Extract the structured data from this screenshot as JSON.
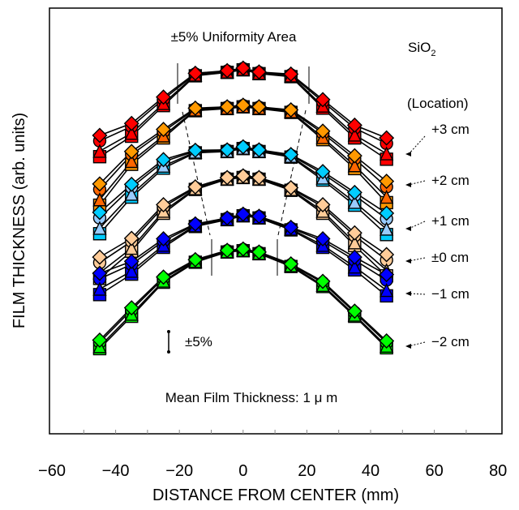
{
  "chart_data": {
    "type": "line",
    "title": "",
    "xlabel": "DISTANCE FROM CENTER (mm)",
    "ylabel": "FILM THICKNESS (arb. units)",
    "xlim": [
      -60,
      80
    ],
    "ylim": [
      0,
      100
    ],
    "x_ticks": [
      "−60",
      "−40",
      "−20",
      "0",
      "20",
      "40",
      "60",
      "80"
    ],
    "x_tick_values": [
      -60,
      -40,
      -20,
      0,
      20,
      40,
      60,
      80
    ],
    "x_minor_step": 10,
    "y_ticks": [],
    "grid": false,
    "x": [
      -45,
      -35,
      -25,
      -15,
      -5,
      0,
      5,
      15,
      25,
      35,
      45
    ],
    "annotations": {
      "uniformity_area": "±5% Uniformity Area",
      "material": "SiO",
      "material_subscript": "2",
      "legend_title": "(Location)",
      "error_bar_label": "±5%",
      "mean_thickness": "Mean Film Thickness: 1 μ m"
    },
    "locations": [
      {
        "label": "+3 cm",
        "color": "#ff0000",
        "alt_color": "#ff0000",
        "diamond": [
          70.1,
          72.9,
          79.1,
          84.7,
          85.3,
          85.9,
          85.0,
          84.5,
          78.5,
          72.5,
          69.5
        ],
        "circle": [
          68.8,
          72.2,
          78.6,
          84.5,
          85.2,
          85.8,
          84.9,
          84.3,
          78.0,
          71.8,
          68.2
        ],
        "triangle": [
          66.4,
          70.6,
          77.6,
          84.3,
          85.0,
          85.6,
          84.7,
          84.1,
          77.0,
          70.2,
          65.8
        ],
        "square": [
          65.1,
          69.9,
          77.1,
          84.1,
          84.9,
          85.5,
          84.6,
          83.9,
          76.5,
          69.5,
          64.5
        ]
      },
      {
        "label": "+2 cm",
        "color": "#ff9900",
        "alt_color": "#ff6600",
        "diamond": [
          58.7,
          66.3,
          71.5,
          76.5,
          76.8,
          77.2,
          76.8,
          76.1,
          71.1,
          65.3,
          59.3
        ],
        "circle": [
          57.4,
          65.6,
          71.0,
          76.3,
          76.7,
          77.1,
          76.7,
          75.9,
          70.6,
          64.6,
          58.0
        ],
        "triangle": [
          55.0,
          64.0,
          70.0,
          76.1,
          76.5,
          76.9,
          76.5,
          75.7,
          69.6,
          63.0,
          55.6
        ],
        "square": [
          53.7,
          63.3,
          69.5,
          75.9,
          76.4,
          76.8,
          76.4,
          75.5,
          69.1,
          62.3,
          54.3
        ]
      },
      {
        "label": "+1 cm",
        "color": "#00ccff",
        "alt_color": "#99ccff",
        "diamond": [
          52.0,
          58.6,
          64.4,
          66.6,
          66.7,
          67.4,
          66.7,
          65.6,
          61.6,
          56.7,
          51.8
        ],
        "circle": [
          50.7,
          57.9,
          63.9,
          66.4,
          66.6,
          67.3,
          66.6,
          65.4,
          61.1,
          56.0,
          50.5
        ],
        "triangle": [
          48.3,
          56.3,
          62.9,
          66.2,
          66.4,
          67.1,
          66.4,
          65.2,
          60.1,
          54.4,
          48.1
        ],
        "square": [
          47.0,
          55.6,
          62.4,
          66.0,
          66.3,
          67.0,
          66.3,
          65.0,
          59.6,
          53.7,
          46.8
        ]
      },
      {
        "label": "±0 cm",
        "color": "#ffcc99",
        "alt_color": "#ffcc99",
        "diamond": [
          41.5,
          45.9,
          53.8,
          58.0,
          60.2,
          60.6,
          60.2,
          57.8,
          53.8,
          47.2,
          42.1
        ],
        "circle": [
          40.2,
          45.2,
          53.3,
          57.8,
          60.1,
          60.5,
          60.1,
          57.6,
          53.3,
          46.5,
          40.8
        ],
        "triangle": [
          37.8,
          43.6,
          52.3,
          57.6,
          59.9,
          60.3,
          59.9,
          57.4,
          52.3,
          44.9,
          38.4
        ],
        "square": [
          36.5,
          42.9,
          51.8,
          57.4,
          59.8,
          60.2,
          59.8,
          57.2,
          51.8,
          44.2,
          37.1
        ]
      },
      {
        "label": "−1 cm",
        "color": "#0000ff",
        "alt_color": "#0000ff",
        "diamond": [
          37.7,
          40.5,
          45.8,
          49.3,
          50.7,
          51.6,
          51.1,
          48.5,
          45.8,
          41.5,
          37.4
        ],
        "circle": [
          36.4,
          39.8,
          45.3,
          49.1,
          50.6,
          51.5,
          51.0,
          48.3,
          45.3,
          40.8,
          36.1
        ],
        "triangle": [
          34.0,
          38.2,
          44.3,
          48.9,
          50.4,
          51.3,
          50.8,
          48.1,
          44.3,
          39.2,
          33.7
        ],
        "square": [
          32.7,
          37.5,
          43.8,
          48.7,
          50.3,
          51.2,
          50.7,
          47.9,
          43.8,
          38.5,
          32.4
        ]
      },
      {
        "label": "−2 cm",
        "color": "#00ff00",
        "alt_color": "#00ff00",
        "diamond": [
          22.0,
          29.6,
          36.8,
          40.9,
          43.1,
          43.4,
          42.7,
          39.9,
          35.8,
          28.8,
          21.8
        ],
        "circle": [
          21.5,
          29.1,
          36.5,
          40.7,
          43.0,
          43.3,
          42.6,
          39.7,
          35.5,
          28.5,
          21.4
        ],
        "triangle": [
          20.5,
          28.1,
          35.9,
          40.5,
          42.8,
          43.1,
          42.4,
          39.5,
          34.9,
          27.9,
          20.6
        ],
        "square": [
          20.0,
          27.6,
          35.6,
          40.3,
          42.7,
          43.0,
          42.3,
          39.3,
          34.6,
          27.6,
          20.2
        ]
      }
    ]
  }
}
